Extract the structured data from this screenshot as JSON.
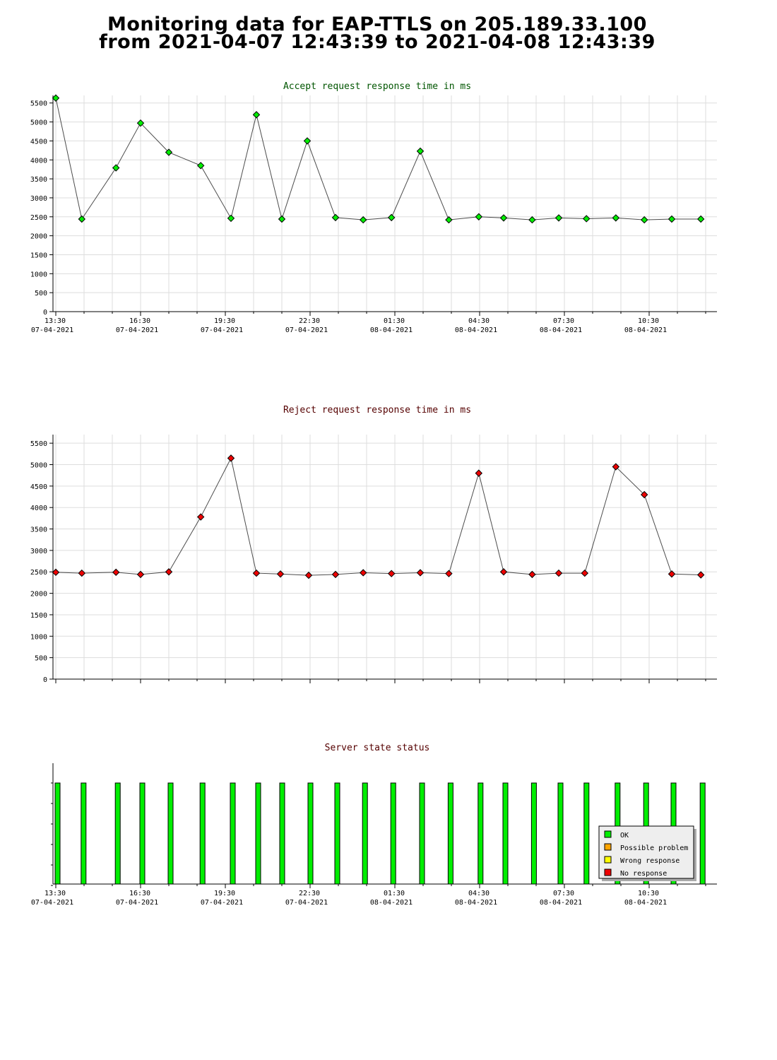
{
  "page": {
    "title_line1": "Monitoring data for EAP-TTLS on 205.189.33.100",
    "title_line2": "from 2021-04-07 12:43:39 to 2021-04-08 12:43:39"
  },
  "colors": {
    "accept": "#00ee00",
    "reject": "#ee0000",
    "ok": "#00ee00",
    "possible": "#ffa500",
    "wrong": "#ffff00",
    "noresp": "#ee0000",
    "accept_title": "#005500",
    "reject_title": "#550000"
  },
  "x_axis": {
    "tick_times": [
      "13:30",
      "16:30",
      "19:30",
      "22:30",
      "01:30",
      "04:30",
      "07:30",
      "10:30"
    ],
    "tick_dates": [
      "07-04-2021",
      "07-04-2021",
      "07-04-2021",
      "07-04-2021",
      "08-04-2021",
      "08-04-2021",
      "08-04-2021",
      "08-04-2021"
    ]
  },
  "chart_data": [
    {
      "type": "line",
      "title": "Accept request response time in ms",
      "ylim": [
        0,
        5700
      ],
      "yticks": [
        0,
        500,
        1000,
        1500,
        2000,
        2500,
        3000,
        3500,
        4000,
        4500,
        5000,
        5500
      ],
      "x_hours": [
        0.0,
        0.92,
        2.13,
        3.0,
        4.0,
        5.13,
        6.2,
        7.1,
        8.0,
        8.9,
        9.9,
        10.88,
        11.88,
        12.9,
        13.91,
        14.97,
        15.85,
        16.86,
        17.8,
        18.78,
        19.82,
        20.83,
        21.8,
        22.83
      ],
      "values": [
        5630,
        2440,
        3790,
        4970,
        4200,
        3850,
        2460,
        5190,
        2440,
        4500,
        2480,
        2420,
        2480,
        4230,
        2420,
        2500,
        2470,
        2420,
        2470,
        2450,
        2470,
        2420,
        2440,
        2440
      ]
    },
    {
      "type": "line",
      "title": "Reject request response time in ms",
      "ylim": [
        0,
        5700
      ],
      "yticks": [
        0,
        500,
        1000,
        1500,
        2000,
        2500,
        3000,
        3500,
        4000,
        4500,
        5000,
        5500
      ],
      "x_hours": [
        0.0,
        0.92,
        2.13,
        3.0,
        4.0,
        5.13,
        6.2,
        7.1,
        7.95,
        8.95,
        9.9,
        10.88,
        11.88,
        12.9,
        13.91,
        14.97,
        15.85,
        16.86,
        17.8,
        18.72,
        19.82,
        20.83,
        21.8,
        22.83
      ],
      "values": [
        2490,
        2470,
        2490,
        2440,
        2500,
        3780,
        5150,
        2470,
        2450,
        2420,
        2440,
        2480,
        2460,
        2480,
        2460,
        4800,
        2500,
        2440,
        2470,
        2470,
        4950,
        4300,
        2450,
        2430
      ]
    },
    {
      "type": "bar",
      "title": "Server state status",
      "x_hours": [
        0.0,
        0.92,
        2.13,
        3.0,
        4.0,
        5.13,
        6.2,
        7.1,
        7.95,
        8.95,
        9.9,
        10.88,
        11.88,
        12.9,
        13.91,
        14.97,
        15.85,
        16.86,
        17.8,
        18.72,
        19.82,
        20.83,
        21.8,
        22.83
      ],
      "status": [
        "OK",
        "OK",
        "OK",
        "OK",
        "OK",
        "OK",
        "OK",
        "OK",
        "OK",
        "OK",
        "OK",
        "OK",
        "OK",
        "OK",
        "OK",
        "OK",
        "OK",
        "OK",
        "OK",
        "OK",
        "OK",
        "OK",
        "OK",
        "OK"
      ],
      "legend": {
        "ok": "OK",
        "possible": "Possible problem",
        "wrong": "Wrong response",
        "noresp": "No response"
      },
      "legend_position": "bottom-right"
    }
  ]
}
